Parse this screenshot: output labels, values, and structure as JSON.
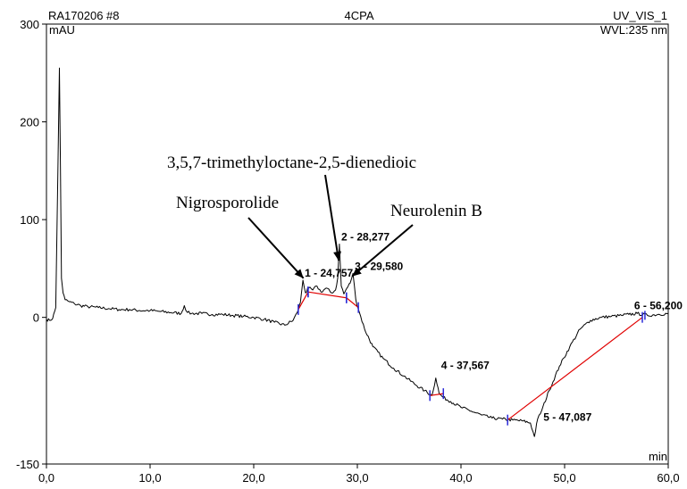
{
  "chart_data": {
    "type": "line",
    "header": {
      "left": "RA170206 #8",
      "center": "4CPA",
      "right": "UV_VIS_1",
      "wavelength": "WVL:235 nm"
    },
    "ylabel": "mAU",
    "xlabel": "min",
    "xlim": [
      0,
      60
    ],
    "ylim": [
      -150,
      300
    ],
    "x_ticks": [
      0,
      10,
      20,
      30,
      40,
      50,
      60
    ],
    "x_tick_labels": [
      "0,0",
      "10,0",
      "20,0",
      "30,0",
      "40,0",
      "50,0",
      "60,0"
    ],
    "y_ticks": [
      -150,
      0,
      100,
      200,
      300
    ],
    "y_tick_labels": [
      "-150",
      "0",
      "100",
      "200",
      "300"
    ],
    "series": [
      {
        "x": [
          0.0,
          0.3,
          0.6,
          0.9,
          1.1,
          1.25,
          1.35,
          1.45,
          1.6,
          1.8,
          2.2,
          2.7,
          3.3,
          4.0,
          5.0,
          6.0,
          7.0,
          8.0,
          9.0,
          10.0,
          11.0,
          12.0,
          13.0,
          13.3,
          13.6,
          14.0,
          15.0,
          16.0,
          17.0,
          18.0,
          19.0,
          20.0,
          21.0,
          22.0,
          23.0,
          23.8,
          24.2,
          24.5,
          24.75,
          25.0,
          25.3,
          25.7,
          26.1,
          26.5,
          27.0,
          27.5,
          27.9,
          28.1,
          28.27,
          28.45,
          28.7,
          29.0,
          29.3,
          29.58,
          29.85,
          30.2,
          30.7,
          31.5,
          32.5,
          33.5,
          34.5,
          35.5,
          36.5,
          37.2,
          37.567,
          37.9,
          38.3,
          39.0,
          40.0,
          41.0,
          42.0,
          43.0,
          44.0,
          45.0,
          46.0,
          46.7,
          47.087,
          47.4,
          47.8,
          48.5,
          49.5,
          50.5,
          51.5,
          52.5,
          53.5,
          54.5,
          55.5,
          56.2,
          57.0,
          58.0,
          59.0,
          60.0
        ],
        "y": [
          -2,
          -3,
          -1,
          10,
          150,
          255,
          150,
          40,
          25,
          18,
          16,
          14,
          12,
          11,
          10,
          9,
          8,
          8,
          7,
          7,
          6,
          5,
          4,
          12,
          5,
          4,
          4,
          3,
          3,
          2,
          1,
          0,
          -2,
          -5,
          -8,
          -3,
          5,
          15,
          38,
          25,
          30,
          28,
          32,
          26,
          30,
          25,
          28,
          40,
          75,
          32,
          24,
          30,
          35,
          45,
          18,
          5,
          -12,
          -30,
          -42,
          -52,
          -60,
          -68,
          -75,
          -80,
          -62,
          -78,
          -82,
          -86,
          -92,
          -96,
          -100,
          -103,
          -104,
          -105,
          -106,
          -108,
          -122,
          -104,
          -95,
          -75,
          -50,
          -30,
          -12,
          -3,
          0,
          1,
          2,
          3,
          4,
          2,
          3,
          4
        ]
      }
    ],
    "peaks": [
      {
        "label": "1 - 24,757",
        "rt": 24.757,
        "height": 38,
        "base_start": [
          24.3,
          8
        ],
        "base_end": [
          25.25,
          26
        ]
      },
      {
        "label": "2 - 28,277",
        "rt": 28.277,
        "height": 75,
        "base_start": [
          25.25,
          26
        ],
        "base_end": [
          28.95,
          20
        ]
      },
      {
        "label": "3 - 29,580",
        "rt": 29.58,
        "height": 45,
        "base_start": [
          28.95,
          20
        ],
        "base_end": [
          30.1,
          10
        ]
      },
      {
        "label": "4 - 37,567",
        "rt": 37.567,
        "height": -62,
        "base_start": [
          37.0,
          -80
        ],
        "base_end": [
          38.3,
          -78
        ]
      },
      {
        "label": "5 - 47,087",
        "rt": 47.087,
        "height": -122,
        "base_start": [
          44.5,
          -105
        ],
        "base_end": [
          57.5,
          0
        ]
      },
      {
        "label": "6 - 56,200",
        "rt": 56.2,
        "height": 3,
        "base_start": null,
        "base_end": null
      }
    ],
    "annotations": [
      {
        "text": "3,5,7-trimethyloctane-2,5-dienedioic",
        "points_to": [
          28.2,
          58
        ]
      },
      {
        "text": "Nigrosporolide",
        "points_to": [
          24.8,
          40
        ]
      },
      {
        "text": "Neurolenin B",
        "points_to": [
          29.5,
          42
        ]
      }
    ],
    "grid": false,
    "legend": "none"
  }
}
